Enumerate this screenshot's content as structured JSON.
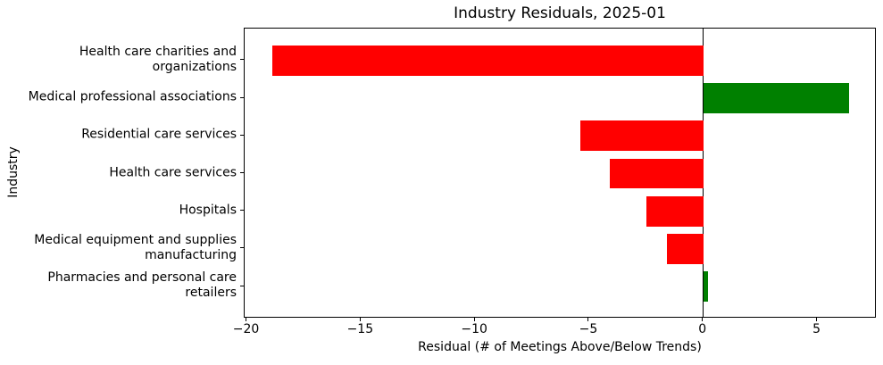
{
  "chart_data": {
    "type": "bar",
    "orientation": "horizontal",
    "title": "Industry Residuals, 2025-01",
    "xlabel": "Residual (# of Meetings Above/Below Trends)",
    "ylabel": "Industry",
    "categories": [
      "Health care charities and\norganizations",
      "Medical professional associations",
      "Residential care services",
      "Health care services",
      "Hospitals",
      "Medical equipment and supplies\nmanufacturing",
      "Pharmacies and personal care\nretailers"
    ],
    "values": [
      -18.9,
      6.4,
      -5.4,
      -4.1,
      -2.5,
      -1.6,
      0.2
    ],
    "xlim": [
      -20.1,
      7.6
    ],
    "xticks": [
      -20,
      -15,
      -10,
      -5,
      0,
      5
    ],
    "xtick_labels": [
      "−20",
      "−15",
      "−10",
      "−5",
      "0",
      "5"
    ],
    "zero_line_at": 0,
    "grid": false,
    "legend_position": "none",
    "colors": {
      "positive": "#008000",
      "negative": "#ff0000",
      "axis": "#000000",
      "background": "#ffffff"
    }
  }
}
